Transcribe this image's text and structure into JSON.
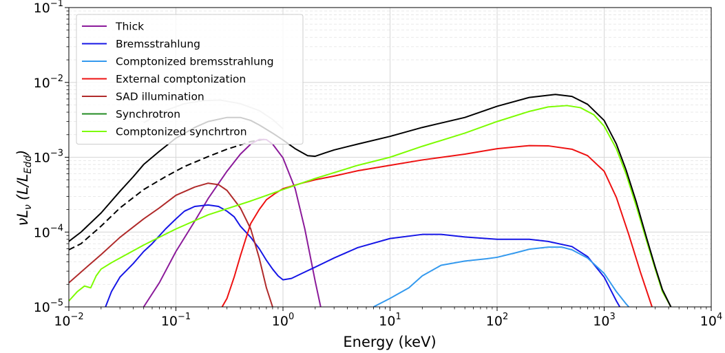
{
  "chart_data": {
    "type": "line",
    "title": "",
    "xlabel": "Energy (keV)",
    "ylabel_prefix": "νL",
    "ylabel_sub": "ν",
    "ylabel_paren": "(L/L",
    "ylabel_paren_sub": "Edd",
    "ylabel_close": ")",
    "x_scale": "log",
    "y_scale": "log",
    "xlim": [
      0.01,
      10000
    ],
    "ylim": [
      1e-05,
      0.1
    ],
    "grid": true,
    "legend_position": "top-left",
    "x_ticks": [
      {
        "base": "10",
        "exp": "−2",
        "value": 0.01
      },
      {
        "base": "10",
        "exp": "−1",
        "value": 0.1
      },
      {
        "base": "10",
        "exp": "0",
        "value": 1
      },
      {
        "base": "10",
        "exp": "1",
        "value": 10
      },
      {
        "base": "10",
        "exp": "2",
        "value": 100
      },
      {
        "base": "10",
        "exp": "3",
        "value": 1000
      },
      {
        "base": "10",
        "exp": "4",
        "value": 10000
      }
    ],
    "y_ticks": [
      {
        "base": "10",
        "exp": "−5",
        "value": 1e-05
      },
      {
        "base": "10",
        "exp": "−4",
        "value": 0.0001
      },
      {
        "base": "10",
        "exp": "−3",
        "value": 0.001
      },
      {
        "base": "10",
        "exp": "−2",
        "value": 0.01
      },
      {
        "base": "10",
        "exp": "−1",
        "value": 0.1
      }
    ],
    "series": [
      {
        "name": "",
        "color": "#c8c8c8",
        "dash": "solid",
        "in_legend": false,
        "points": [
          [
            0.05,
            0.0029
          ],
          [
            0.08,
            0.0042
          ],
          [
            0.12,
            0.0052
          ],
          [
            0.18,
            0.0057
          ],
          [
            0.26,
            0.0058
          ],
          [
            0.4,
            0.0052
          ],
          [
            0.6,
            0.0042
          ],
          [
            0.8,
            0.0032
          ],
          [
            1.0,
            0.0024
          ]
        ]
      },
      {
        "name": "",
        "color": "#000000",
        "dash": "dashed",
        "in_legend": false,
        "points": [
          [
            0.01,
            5.8e-05
          ],
          [
            0.013,
            7e-05
          ],
          [
            0.02,
            0.00012
          ],
          [
            0.03,
            0.00021
          ],
          [
            0.05,
            0.00037
          ],
          [
            0.08,
            0.00055
          ],
          [
            0.12,
            0.00075
          ],
          [
            0.2,
            0.00102
          ],
          [
            0.3,
            0.00128
          ],
          [
            0.5,
            0.00162
          ],
          [
            0.7,
            0.00175
          ]
        ]
      },
      {
        "name": "Thick",
        "color": "#8b1a9a",
        "dash": "solid",
        "in_legend": true,
        "points": [
          [
            0.05,
            1e-05
          ],
          [
            0.07,
            2.1e-05
          ],
          [
            0.1,
            5.5e-05
          ],
          [
            0.15,
            0.00014
          ],
          [
            0.2,
            0.00028
          ],
          [
            0.3,
            0.00065
          ],
          [
            0.4,
            0.0011
          ],
          [
            0.5,
            0.0015
          ],
          [
            0.6,
            0.00173
          ],
          [
            0.7,
            0.00172
          ],
          [
            0.8,
            0.0015
          ],
          [
            1.0,
            0.00098
          ],
          [
            1.3,
            0.00038
          ],
          [
            1.6,
            0.00011
          ],
          [
            2.0,
            2.2e-05
          ],
          [
            2.25,
            1e-05
          ]
        ]
      },
      {
        "name": "Bremsstrahlung",
        "color": "#1515e6",
        "dash": "solid",
        "in_legend": true,
        "points": [
          [
            0.022,
            1e-05
          ],
          [
            0.025,
            1.6e-05
          ],
          [
            0.03,
            2.5e-05
          ],
          [
            0.04,
            3.8e-05
          ],
          [
            0.05,
            5.5e-05
          ],
          [
            0.06,
            7e-05
          ],
          [
            0.08,
            0.00011
          ],
          [
            0.1,
            0.00015
          ],
          [
            0.12,
            0.00019
          ],
          [
            0.15,
            0.00022
          ],
          [
            0.2,
            0.00023
          ],
          [
            0.25,
            0.00022
          ],
          [
            0.3,
            0.00019
          ],
          [
            0.35,
            0.00016
          ],
          [
            0.4,
            0.00012
          ],
          [
            0.5,
            8.5e-05
          ],
          [
            0.6,
            6e-05
          ],
          [
            0.7,
            4.2e-05
          ],
          [
            0.8,
            3.2e-05
          ],
          [
            0.9,
            2.6e-05
          ],
          [
            1.0,
            2.3e-05
          ],
          [
            1.2,
            2.4e-05
          ],
          [
            1.5,
            2.8e-05
          ],
          [
            2,
            3.4e-05
          ],
          [
            3,
            4.5e-05
          ],
          [
            5,
            6.2e-05
          ],
          [
            10,
            8.2e-05
          ],
          [
            20,
            9.3e-05
          ],
          [
            30,
            9.3e-05
          ],
          [
            50,
            8.6e-05
          ],
          [
            100,
            8e-05
          ],
          [
            200,
            8e-05
          ],
          [
            300,
            7.5e-05
          ],
          [
            500,
            6.4e-05
          ],
          [
            700,
            4.7e-05
          ],
          [
            1000,
            2.5e-05
          ],
          [
            1300,
            1.2e-05
          ],
          [
            1400,
            1e-05
          ]
        ]
      },
      {
        "name": "Comptonized bremsstrahlung",
        "color": "#3399ee",
        "dash": "solid",
        "in_legend": true,
        "points": [
          [
            7,
            1e-05
          ],
          [
            10,
            1.3e-05
          ],
          [
            15,
            1.8e-05
          ],
          [
            20,
            2.6e-05
          ],
          [
            30,
            3.6e-05
          ],
          [
            50,
            4.1e-05
          ],
          [
            80,
            4.4e-05
          ],
          [
            100,
            4.6e-05
          ],
          [
            150,
            5.3e-05
          ],
          [
            200,
            5.9e-05
          ],
          [
            300,
            6.3e-05
          ],
          [
            400,
            6.3e-05
          ],
          [
            500,
            5.8e-05
          ],
          [
            700,
            4.5e-05
          ],
          [
            1000,
            2.8e-05
          ],
          [
            1300,
            1.6e-05
          ],
          [
            1600,
            1.1e-05
          ],
          [
            1700,
            1e-05
          ]
        ]
      },
      {
        "name": "External comptonization",
        "color": "#ee1111",
        "dash": "solid",
        "in_legend": true,
        "points": [
          [
            0.27,
            1e-05
          ],
          [
            0.3,
            1.3e-05
          ],
          [
            0.35,
            2.5e-05
          ],
          [
            0.4,
            4.8e-05
          ],
          [
            0.45,
            8.2e-05
          ],
          [
            0.5,
            0.00013
          ],
          [
            0.6,
            0.0002
          ],
          [
            0.7,
            0.00027
          ],
          [
            0.85,
            0.00033
          ],
          [
            1.0,
            0.00038
          ],
          [
            1.5,
            0.00045
          ],
          [
            2,
            0.0005
          ],
          [
            3,
            0.00056
          ],
          [
            5,
            0.00066
          ],
          [
            10,
            0.00078
          ],
          [
            20,
            0.00092
          ],
          [
            50,
            0.0011
          ],
          [
            100,
            0.0013
          ],
          [
            200,
            0.00143
          ],
          [
            300,
            0.00142
          ],
          [
            500,
            0.00128
          ],
          [
            700,
            0.00105
          ],
          [
            1000,
            0.00065
          ],
          [
            1300,
            0.00029
          ],
          [
            1700,
            9.2e-05
          ],
          [
            2200,
            2.8e-05
          ],
          [
            2800,
            1e-05
          ]
        ]
      },
      {
        "name": "SAD illumination",
        "color": "#b02a2a",
        "dash": "solid",
        "in_legend": true,
        "points": [
          [
            0.01,
            2.1e-05
          ],
          [
            0.015,
            3.5e-05
          ],
          [
            0.02,
            5e-05
          ],
          [
            0.03,
            8.5e-05
          ],
          [
            0.05,
            0.00015
          ],
          [
            0.07,
            0.00021
          ],
          [
            0.1,
            0.00031
          ],
          [
            0.15,
            0.0004
          ],
          [
            0.2,
            0.00045
          ],
          [
            0.25,
            0.00043
          ],
          [
            0.3,
            0.00036
          ],
          [
            0.4,
            0.00021
          ],
          [
            0.5,
            0.00011
          ],
          [
            0.6,
            4.5e-05
          ],
          [
            0.7,
            1.8e-05
          ],
          [
            0.8,
            1e-05
          ]
        ]
      },
      {
        "name": "Synchrotron",
        "color": "#228b22",
        "dash": "solid",
        "in_legend": true,
        "points": []
      },
      {
        "name": "Comptonized synchrtron",
        "color": "#7cfc00",
        "dash": "solid",
        "in_legend": true,
        "points": [
          [
            0.01,
            1.2e-05
          ],
          [
            0.012,
            1.6e-05
          ],
          [
            0.014,
            1.9e-05
          ],
          [
            0.016,
            1.8e-05
          ],
          [
            0.018,
            2.6e-05
          ],
          [
            0.02,
            3.2e-05
          ],
          [
            0.025,
            3.9e-05
          ],
          [
            0.03,
            4.5e-05
          ],
          [
            0.05,
            6.7e-05
          ],
          [
            0.1,
            0.00011
          ],
          [
            0.2,
            0.00017
          ],
          [
            0.5,
            0.00026
          ],
          [
            1,
            0.00037
          ],
          [
            2,
            0.00052
          ],
          [
            5,
            0.00078
          ],
          [
            10,
            0.001
          ],
          [
            20,
            0.0014
          ],
          [
            50,
            0.0021
          ],
          [
            100,
            0.003
          ],
          [
            200,
            0.0041
          ],
          [
            300,
            0.0047
          ],
          [
            450,
            0.0049
          ],
          [
            600,
            0.0046
          ],
          [
            800,
            0.0037
          ],
          [
            1000,
            0.0026
          ],
          [
            1300,
            0.0013
          ],
          [
            1600,
            0.0006
          ],
          [
            2000,
            0.00022
          ],
          [
            2500,
            7.5e-05
          ],
          [
            3000,
            3.2e-05
          ],
          [
            3500,
            1.6e-05
          ],
          [
            4200,
            1e-05
          ]
        ]
      },
      {
        "name": "",
        "color": "#000000",
        "dash": "solid",
        "in_legend": false,
        "points": [
          [
            0.01,
            7.5e-05
          ],
          [
            0.013,
            0.0001
          ],
          [
            0.02,
            0.00018
          ],
          [
            0.03,
            0.00035
          ],
          [
            0.04,
            0.00055
          ],
          [
            0.05,
            0.0008
          ],
          [
            0.07,
            0.0012
          ],
          [
            0.1,
            0.0018
          ],
          [
            0.15,
            0.0025
          ],
          [
            0.2,
            0.003
          ],
          [
            0.3,
            0.0034
          ],
          [
            0.4,
            0.0034
          ],
          [
            0.5,
            0.0031
          ],
          [
            0.6,
            0.0027
          ],
          [
            0.8,
            0.0021
          ],
          [
            1.0,
            0.0017
          ],
          [
            1.3,
            0.0013
          ],
          [
            1.7,
            0.00105
          ],
          [
            2,
            0.00103
          ],
          [
            2.5,
            0.00115
          ],
          [
            3,
            0.00125
          ],
          [
            5,
            0.0015
          ],
          [
            10,
            0.0019
          ],
          [
            20,
            0.0025
          ],
          [
            50,
            0.0034
          ],
          [
            100,
            0.0048
          ],
          [
            200,
            0.0063
          ],
          [
            350,
            0.0069
          ],
          [
            500,
            0.0065
          ],
          [
            700,
            0.0051
          ],
          [
            1000,
            0.0031
          ],
          [
            1300,
            0.0015
          ],
          [
            1600,
            0.00068
          ],
          [
            2000,
            0.00025
          ],
          [
            2500,
            8.2e-05
          ],
          [
            3000,
            3.4e-05
          ],
          [
            3500,
            1.7e-05
          ],
          [
            4200,
            1e-05
          ]
        ]
      }
    ]
  }
}
